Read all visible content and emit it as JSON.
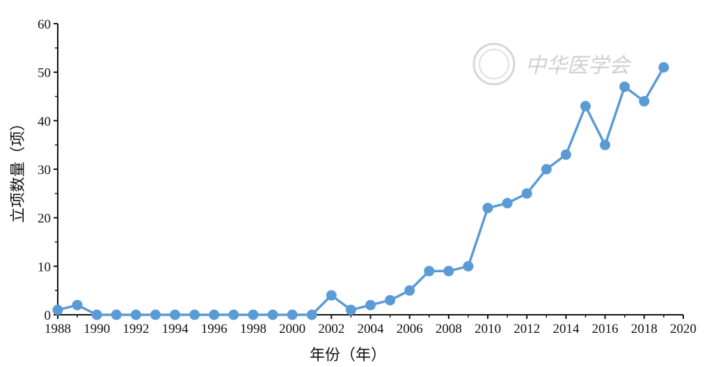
{
  "chart_data": {
    "type": "line",
    "x": [
      1988,
      1989,
      1990,
      1991,
      1992,
      1993,
      1994,
      1995,
      1996,
      1997,
      1998,
      1999,
      2000,
      2001,
      2002,
      2003,
      2004,
      2005,
      2006,
      2007,
      2008,
      2009,
      2010,
      2011,
      2012,
      2013,
      2014,
      2015,
      2016,
      2017,
      2018,
      2019
    ],
    "series": [
      {
        "values": [
          1,
          2,
          0,
          0,
          0,
          0,
          0,
          0,
          0,
          0,
          0,
          0,
          0,
          0,
          4,
          1,
          2,
          3,
          5,
          9,
          9,
          10,
          22,
          23,
          25,
          30,
          33,
          43,
          35,
          47,
          44,
          51
        ]
      }
    ],
    "xlabel": "年份（年）",
    "ylabel": "立项数量（项）",
    "xlim": [
      1988,
      2020
    ],
    "ylim": [
      0,
      60
    ],
    "xticks": [
      "1988",
      "1990",
      "1992",
      "1994",
      "1996",
      "1998",
      "2000",
      "2002",
      "2004",
      "2006",
      "2008",
      "2010",
      "2012",
      "2014",
      "2016",
      "2018",
      "2020"
    ],
    "yticks": [
      "0",
      "10",
      "20",
      "30",
      "40",
      "50",
      "60"
    ],
    "grid": false,
    "color": "#5b9bd5",
    "watermark": "中华医学会"
  }
}
